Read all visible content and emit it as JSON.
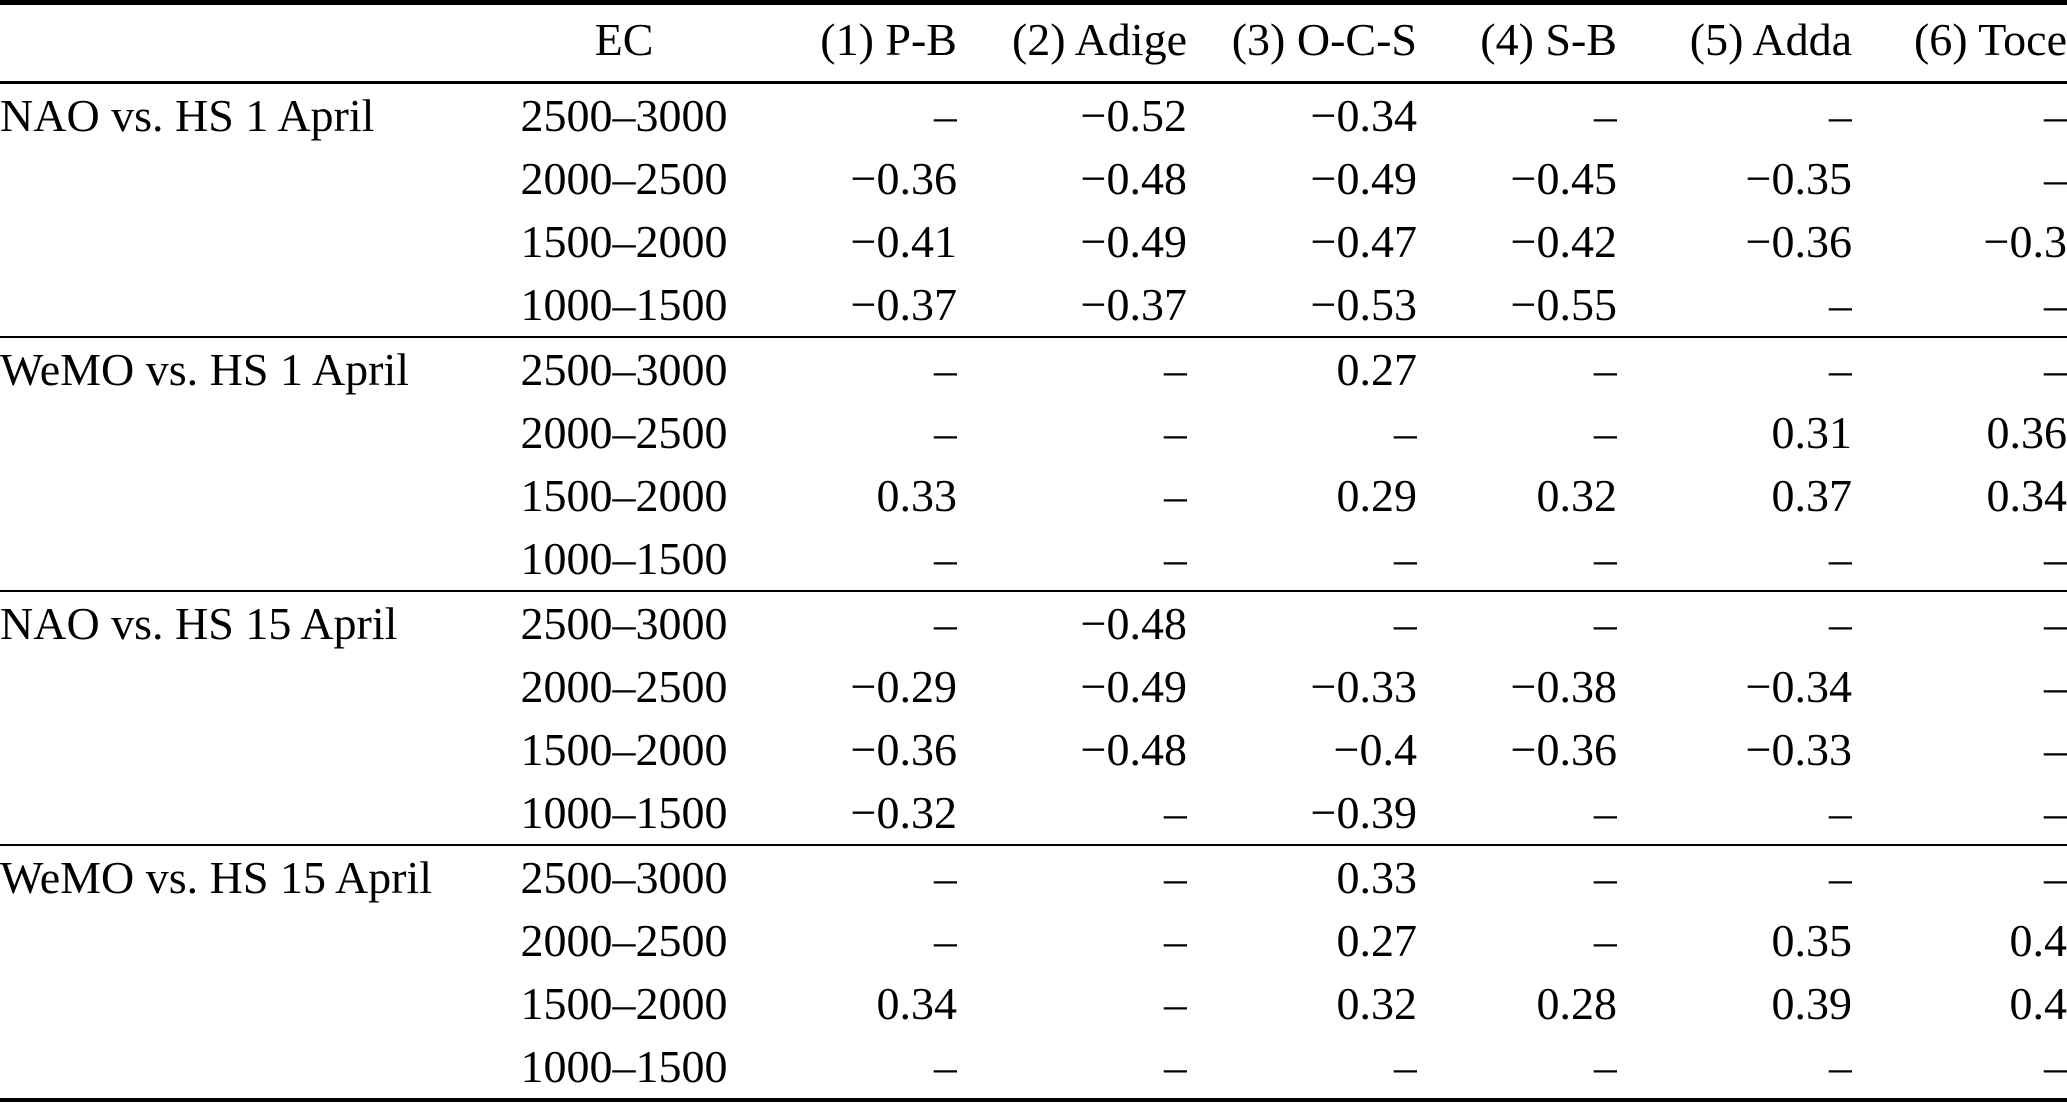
{
  "page": {
    "background_color": "#ffffff",
    "text_color": "#000000"
  },
  "table": {
    "columns": [
      "",
      "EC",
      "(1) P-B",
      "(2) Adige",
      "(3) O-C-S",
      "(4) S-B",
      "(5) Adda",
      "(6) Toce"
    ],
    "missing_marker": "–",
    "groups": [
      {
        "label": "NAO vs. HS 1 April",
        "rows": [
          {
            "ec": "2500–3000",
            "values": [
              "–",
              "−0.52",
              "−0.34",
              "–",
              "–",
              "–"
            ]
          },
          {
            "ec": "2000–2500",
            "values": [
              "−0.36",
              "−0.48",
              "−0.49",
              "−0.45",
              "−0.35",
              "–"
            ]
          },
          {
            "ec": "1500–2000",
            "values": [
              "−0.41",
              "−0.49",
              "−0.47",
              "−0.42",
              "−0.36",
              "−0.3"
            ]
          },
          {
            "ec": "1000–1500",
            "values": [
              "−0.37",
              "−0.37",
              "−0.53",
              "−0.55",
              "–",
              "–"
            ]
          }
        ]
      },
      {
        "label": "WeMO vs. HS 1 April",
        "rows": [
          {
            "ec": "2500–3000",
            "values": [
              "–",
              "–",
              "0.27",
              "–",
              "–",
              "–"
            ]
          },
          {
            "ec": "2000–2500",
            "values": [
              "–",
              "–",
              "–",
              "–",
              "0.31",
              "0.36"
            ]
          },
          {
            "ec": "1500–2000",
            "values": [
              "0.33",
              "–",
              "0.29",
              "0.32",
              "0.37",
              "0.34"
            ]
          },
          {
            "ec": "1000–1500",
            "values": [
              "–",
              "–",
              "–",
              "–",
              "–",
              "–"
            ]
          }
        ]
      },
      {
        "label": "NAO vs. HS 15 April",
        "rows": [
          {
            "ec": "2500–3000",
            "values": [
              "–",
              "−0.48",
              "–",
              "–",
              "–",
              "–"
            ]
          },
          {
            "ec": "2000–2500",
            "values": [
              "−0.29",
              "−0.49",
              "−0.33",
              "−0.38",
              "−0.34",
              "–"
            ]
          },
          {
            "ec": "1500–2000",
            "values": [
              "−0.36",
              "−0.48",
              "−0.4",
              "−0.36",
              "−0.33",
              "–"
            ]
          },
          {
            "ec": "1000–1500",
            "values": [
              "−0.32",
              "–",
              "−0.39",
              "–",
              "–",
              "–"
            ]
          }
        ]
      },
      {
        "label": "WeMO vs. HS 15 April",
        "rows": [
          {
            "ec": "2500–3000",
            "values": [
              "–",
              "–",
              "0.33",
              "–",
              "–",
              "–"
            ]
          },
          {
            "ec": "2000–2500",
            "values": [
              "–",
              "–",
              "0.27",
              "–",
              "0.35",
              "0.4"
            ]
          },
          {
            "ec": "1500–2000",
            "values": [
              "0.34",
              "–",
              "0.32",
              "0.28",
              "0.39",
              "0.4"
            ]
          },
          {
            "ec": "1000–1500",
            "values": [
              "–",
              "–",
              "–",
              "–",
              "–",
              "–"
            ]
          }
        ]
      }
    ]
  }
}
